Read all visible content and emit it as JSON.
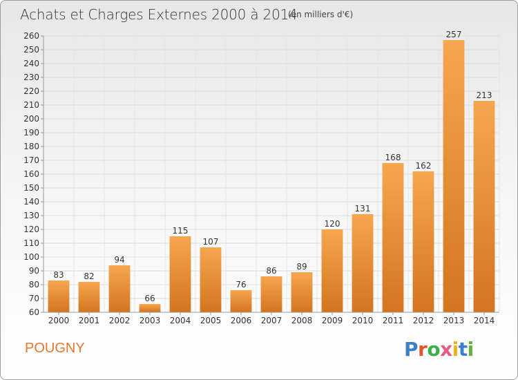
{
  "title": "Achats et Charges Externes 2000 à 2014",
  "subtitle": "(en milliers d'€)",
  "commune": "POUGNY",
  "logo": {
    "text": "Proxiti",
    "colors": [
      "#3d7fc9",
      "#e2572a",
      "#3fae49",
      "#e85b7f",
      "#f2b01e",
      "#3d7fc9",
      "#5fb339"
    ]
  },
  "colors": {
    "bar_top": "#f6a64f",
    "bar_bottom": "#d4741f",
    "commune": "#e8762d",
    "grid": "#dddddd",
    "text": "#333333"
  },
  "chart_data": {
    "type": "bar",
    "title": "Achats et Charges Externes 2000 à 2014",
    "subtitle": "(en milliers d'€)",
    "xlabel": "",
    "ylabel": "",
    "categories": [
      "2000",
      "2001",
      "2002",
      "2003",
      "2004",
      "2005",
      "2006",
      "2007",
      "2008",
      "2009",
      "2010",
      "2011",
      "2012",
      "2013",
      "2014"
    ],
    "values": [
      83,
      82,
      94,
      66,
      115,
      107,
      76,
      86,
      89,
      120,
      131,
      168,
      162,
      257,
      213
    ],
    "ylim": [
      60,
      260
    ],
    "yticks": [
      60,
      70,
      80,
      90,
      100,
      110,
      120,
      130,
      140,
      150,
      160,
      170,
      180,
      190,
      200,
      210,
      220,
      230,
      240,
      250,
      260
    ],
    "grid": true
  }
}
